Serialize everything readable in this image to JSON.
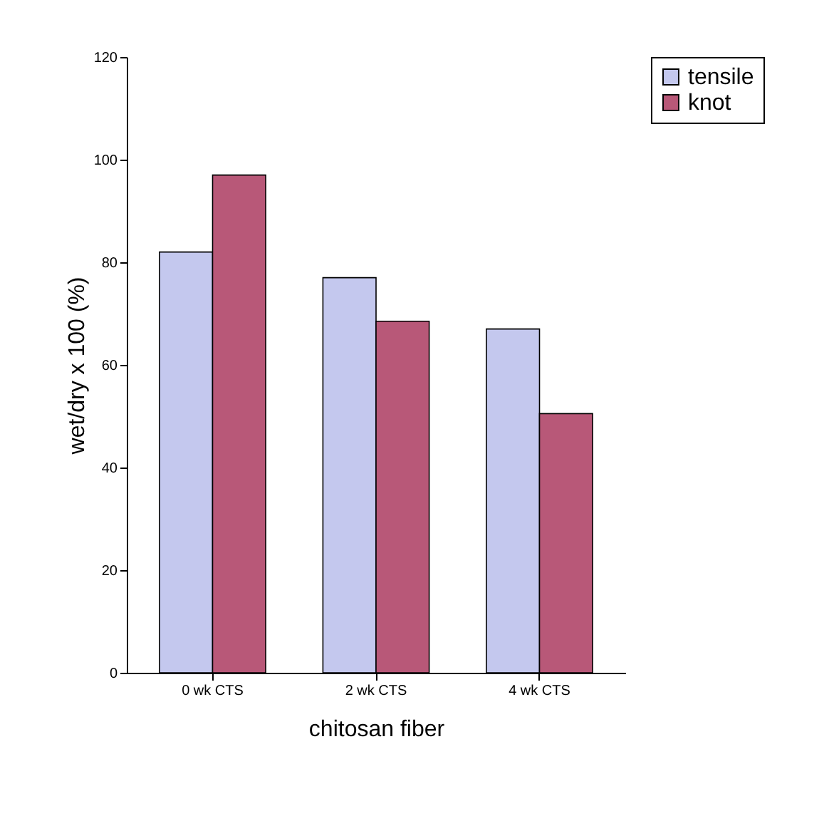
{
  "chart_data": {
    "type": "bar",
    "xlabel": "chitosan fiber",
    "ylabel": "wet/dry x 100 (%)",
    "categories": [
      "0 wk CTS",
      "2 wk CTS",
      "4 wk CTS"
    ],
    "series": [
      {
        "name": "tensile",
        "color": "#c4c8ee",
        "values": [
          82,
          77,
          67
        ]
      },
      {
        "name": "knot",
        "color": "#b85878",
        "values": [
          97,
          68.5,
          50.5
        ]
      }
    ],
    "ylim": [
      0,
      120
    ],
    "yticks": [
      0,
      20,
      40,
      60,
      80,
      100,
      120
    ],
    "grid": false,
    "legend": "right"
  }
}
